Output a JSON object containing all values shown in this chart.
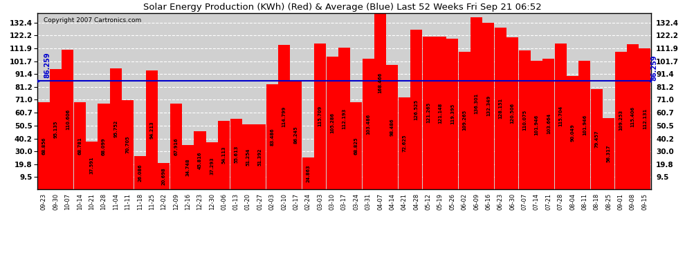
{
  "title": "Solar Energy Production (KWh) (Red) & Average (Blue) Last 52 Weeks Fri Sep 21 06:52",
  "copyright": "Copyright 2007 Cartronics.com",
  "average_label": "86.259",
  "average_value": 86.259,
  "bar_color": "#ff0000",
  "avg_line_color": "#0000cc",
  "background_color": "#ffffff",
  "plot_bg_color": "#d0d0d0",
  "grid_color": "#ffffff",
  "yticks": [
    9.5,
    19.8,
    30.0,
    40.2,
    50.5,
    60.7,
    71.0,
    81.2,
    91.4,
    101.7,
    111.9,
    122.2,
    132.4
  ],
  "ymax": 140,
  "categories": [
    "09-23",
    "09-30",
    "10-07",
    "10-14",
    "10-21",
    "10-28",
    "11-04",
    "11-11",
    "11-18",
    "11-25",
    "12-02",
    "12-09",
    "12-16",
    "12-23",
    "12-30",
    "01-06",
    "01-13",
    "01-20",
    "01-27",
    "02-03",
    "02-10",
    "02-17",
    "02-24",
    "03-03",
    "03-10",
    "03-17",
    "03-24",
    "03-31",
    "04-07",
    "04-14",
    "04-21",
    "04-28",
    "05-12",
    "05-19",
    "05-26",
    "06-02",
    "06-09",
    "06-16",
    "06-23",
    "06-30",
    "07-07",
    "07-14",
    "07-21",
    "07-28",
    "08-04",
    "08-11",
    "08-18",
    "08-25",
    "09-01",
    "09-08",
    "09-15"
  ],
  "values": [
    68.856,
    95.135,
    110.606,
    68.781,
    37.591,
    68.099,
    95.752,
    70.705,
    26.086,
    94.213,
    20.698,
    67.916,
    34.748,
    45.816,
    37.293,
    54.113,
    55.613,
    51.254,
    51.392,
    83.486,
    114.799,
    86.245,
    24.863,
    115.709,
    105.286,
    112.193,
    68.825,
    103.486,
    168.466,
    98.486,
    72.625,
    126.525,
    121.265,
    121.148,
    119.395,
    109.265,
    136.301,
    132.349,
    128.151,
    120.506,
    110.075,
    101.946,
    103.664,
    115.704,
    90.049,
    101.946,
    79.457,
    56.317,
    109.253,
    115.406,
    112.131
  ]
}
